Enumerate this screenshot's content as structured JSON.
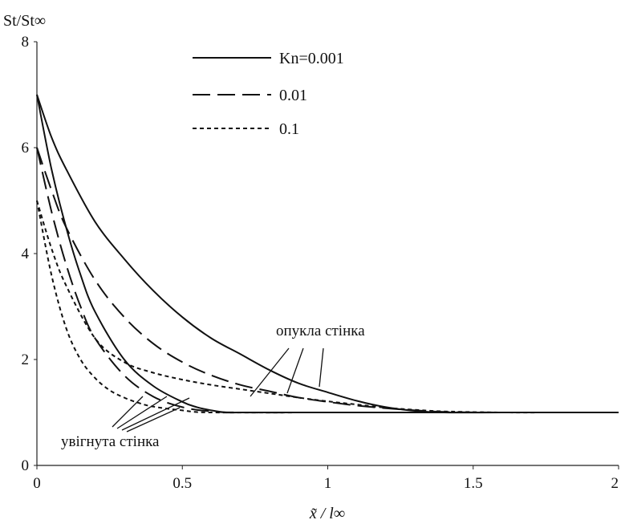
{
  "chart_data": {
    "type": "line",
    "ylabel": "St/St∞",
    "xlabel": "x̃ / l∞",
    "xlim": [
      0,
      2
    ],
    "ylim": [
      0,
      8
    ],
    "x_ticks": [
      "0",
      "0.5",
      "1",
      "1.5",
      "2"
    ],
    "y_ticks": [
      "0",
      "2",
      "4",
      "6",
      "8"
    ],
    "grid": false,
    "legend_position": "top-center",
    "legend": [
      {
        "label": "Kn=0.001",
        "style": "solid"
      },
      {
        "label": "0.01",
        "style": "long-dash"
      },
      {
        "label": "0.1",
        "style": "short-dash"
      }
    ],
    "annotations": {
      "convex": "опукла стінка",
      "concave": "увігнута стінка"
    },
    "series": [
      {
        "group": "convex",
        "legend_index": 0,
        "style": "solid",
        "x": [
          0,
          0.05,
          0.1,
          0.2,
          0.3,
          0.4,
          0.5,
          0.6,
          0.7,
          0.8,
          0.9,
          1.0,
          1.1,
          1.2,
          1.3,
          1.4,
          1.6,
          1.8,
          2.0
        ],
        "y": [
          7.0,
          6.2,
          5.6,
          4.6,
          3.9,
          3.3,
          2.8,
          2.4,
          2.1,
          1.8,
          1.55,
          1.38,
          1.22,
          1.1,
          1.03,
          1.0,
          1.0,
          1.0,
          1.0
        ]
      },
      {
        "group": "convex",
        "legend_index": 1,
        "style": "long-dash",
        "x": [
          0,
          0.05,
          0.1,
          0.2,
          0.3,
          0.4,
          0.5,
          0.6,
          0.7,
          0.8,
          0.9,
          1.0,
          1.1,
          1.2,
          1.3,
          1.4,
          1.6,
          1.8,
          2.0
        ],
        "y": [
          6.0,
          5.2,
          4.5,
          3.5,
          2.8,
          2.3,
          1.95,
          1.7,
          1.52,
          1.4,
          1.28,
          1.2,
          1.13,
          1.08,
          1.04,
          1.01,
          1.0,
          1.0,
          1.0
        ]
      },
      {
        "group": "convex",
        "legend_index": 2,
        "style": "short-dash",
        "x": [
          0,
          0.05,
          0.1,
          0.2,
          0.3,
          0.4,
          0.5,
          0.6,
          0.7,
          0.8,
          0.9,
          1.0,
          1.1,
          1.2,
          1.3,
          1.4,
          1.6,
          1.8,
          2.0
        ],
        "y": [
          5.0,
          4.1,
          3.4,
          2.4,
          1.95,
          1.75,
          1.62,
          1.52,
          1.44,
          1.36,
          1.28,
          1.21,
          1.15,
          1.09,
          1.05,
          1.02,
          1.0,
          1.0,
          1.0
        ]
      },
      {
        "group": "concave",
        "legend_index": 0,
        "style": "solid",
        "x": [
          0,
          0.05,
          0.1,
          0.15,
          0.2,
          0.3,
          0.4,
          0.5,
          0.55,
          0.6,
          0.65,
          0.7,
          1.0,
          1.5,
          2.0
        ],
        "y": [
          7.0,
          5.6,
          4.5,
          3.6,
          2.9,
          2.0,
          1.5,
          1.2,
          1.1,
          1.04,
          1.0,
          1.0,
          1.0,
          1.0,
          1.0
        ]
      },
      {
        "group": "concave",
        "legend_index": 1,
        "style": "long-dash",
        "x": [
          0,
          0.05,
          0.1,
          0.15,
          0.2,
          0.3,
          0.4,
          0.5,
          0.6,
          0.7,
          1.0,
          1.5,
          2.0
        ],
        "y": [
          6.0,
          4.8,
          3.8,
          3.0,
          2.4,
          1.7,
          1.3,
          1.1,
          1.02,
          1.0,
          1.0,
          1.0,
          1.0
        ]
      },
      {
        "group": "concave",
        "legend_index": 2,
        "style": "short-dash",
        "x": [
          0,
          0.05,
          0.1,
          0.15,
          0.2,
          0.25,
          0.3,
          0.35,
          0.4,
          0.5,
          0.6,
          1.0,
          1.5,
          2.0
        ],
        "y": [
          5.0,
          3.6,
          2.6,
          2.0,
          1.65,
          1.42,
          1.28,
          1.18,
          1.11,
          1.04,
          1.0,
          1.0,
          1.0,
          1.0
        ]
      }
    ]
  }
}
